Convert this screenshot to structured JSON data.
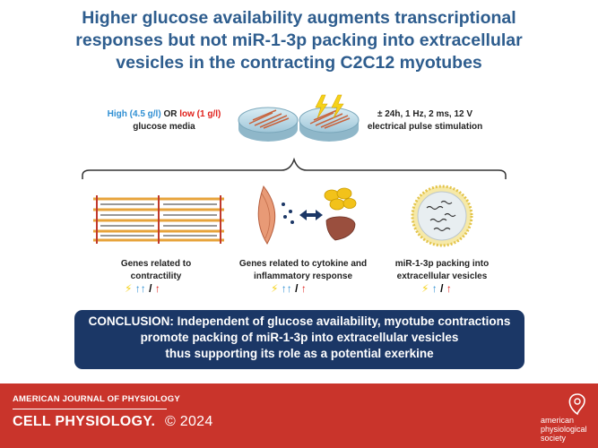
{
  "title": {
    "line1": "Higher glucose availability augments transcriptional",
    "line2": "responses but not miR-1-3p packing into extracellular",
    "line3": "vesicles in the contracting C2C12 myotubes"
  },
  "media": {
    "high": "High (4.5 g/l)",
    "or": "OR",
    "low": "low (1 g/l)",
    "line2": "glucose media"
  },
  "stim": {
    "line1": "± 24h, 1 Hz, 2 ms, 12 V",
    "line2": "electrical pulse stimulation"
  },
  "panels": {
    "contractility": {
      "line1": "Genes related to",
      "line2": "contractility",
      "arrows": "↑↑ / ↑"
    },
    "cytokine": {
      "line1": "Genes related to cytokine and",
      "line2": "inflammatory response",
      "arrows": "↑↑ / ↑"
    },
    "mir": {
      "line1": "miR-1-3p packing into",
      "line2": "extracellular vesicles",
      "arrows": "↑ / ↑"
    }
  },
  "conclusion": {
    "line1": "CONCLUSION: Independent of glucose availability, myotube contractions",
    "line2": "promote packing of miR-1-3p into extracellular vesicles",
    "line3": "thus supporting its role as a potential exerkine"
  },
  "footer": {
    "journal": "AMERICAN JOURNAL OF PHYSIOLOGY",
    "cell": "CELL PHYSIOLOGY.",
    "copyright": "© 2024",
    "aps_line1": "american",
    "aps_line2": "physiological",
    "aps_line3": "society"
  },
  "colors": {
    "title": "#2e5d8e",
    "high": "#2f8fd3",
    "low": "#e0201b",
    "conclusion_bg": "#1b3766",
    "footer_bg": "#c9342b",
    "lightning": "#f5d21a"
  }
}
